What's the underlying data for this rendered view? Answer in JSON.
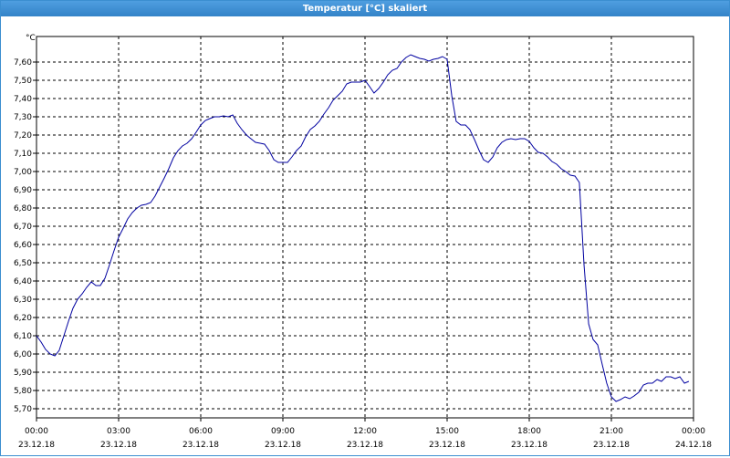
{
  "chart_data": {
    "type": "line",
    "title": "Temperatur [°C] skaliert",
    "ylabel": "°C",
    "xlim": [
      0,
      24
    ],
    "ylim": [
      5.65,
      7.74
    ],
    "grid": true,
    "xticks": [
      {
        "value": 0,
        "label": "00:00",
        "date": "23.12.18"
      },
      {
        "value": 3,
        "label": "03:00",
        "date": "23.12.18"
      },
      {
        "value": 6,
        "label": "06:00",
        "date": "23.12.18"
      },
      {
        "value": 9,
        "label": "09:00",
        "date": "23.12.18"
      },
      {
        "value": 12,
        "label": "12:00",
        "date": "23.12.18"
      },
      {
        "value": 15,
        "label": "15:00",
        "date": "23.12.18"
      },
      {
        "value": 18,
        "label": "18:00",
        "date": "23.12.18"
      },
      {
        "value": 21,
        "label": "21:00",
        "date": "23.12.18"
      },
      {
        "value": 24,
        "label": "00:00",
        "date": "24.12.18"
      }
    ],
    "yticks": [
      {
        "value": 5.7,
        "label": "5,70"
      },
      {
        "value": 5.8,
        "label": "5,80"
      },
      {
        "value": 5.9,
        "label": "5,90"
      },
      {
        "value": 6.0,
        "label": "6,00"
      },
      {
        "value": 6.1,
        "label": "6,10"
      },
      {
        "value": 6.2,
        "label": "6,20"
      },
      {
        "value": 6.3,
        "label": "6,30"
      },
      {
        "value": 6.4,
        "label": "6,40"
      },
      {
        "value": 6.5,
        "label": "6,50"
      },
      {
        "value": 6.6,
        "label": "6,60"
      },
      {
        "value": 6.7,
        "label": "6,70"
      },
      {
        "value": 6.8,
        "label": "6,80"
      },
      {
        "value": 6.9,
        "label": "6,90"
      },
      {
        "value": 7.0,
        "label": "7,00"
      },
      {
        "value": 7.1,
        "label": "7,10"
      },
      {
        "value": 7.2,
        "label": "7,20"
      },
      {
        "value": 7.3,
        "label": "7,30"
      },
      {
        "value": 7.4,
        "label": "7,40"
      },
      {
        "value": 7.5,
        "label": "7,50"
      },
      {
        "value": 7.6,
        "label": "7,60"
      }
    ],
    "x": [
      0,
      0.17,
      0.33,
      0.5,
      0.67,
      0.83,
      1,
      1.17,
      1.33,
      1.5,
      1.67,
      1.83,
      2,
      2.17,
      2.33,
      2.5,
      2.67,
      2.83,
      3,
      3.17,
      3.33,
      3.5,
      3.67,
      3.83,
      4,
      4.17,
      4.33,
      4.5,
      4.67,
      4.83,
      5,
      5.17,
      5.33,
      5.5,
      5.67,
      5.83,
      6,
      6.17,
      6.33,
      6.5,
      6.67,
      6.83,
      7,
      7.17,
      7.33,
      7.5,
      7.67,
      7.83,
      8,
      8.17,
      8.33,
      8.5,
      8.67,
      8.83,
      9,
      9.17,
      9.33,
      9.5,
      9.67,
      9.83,
      10,
      10.17,
      10.33,
      10.5,
      10.67,
      10.83,
      11,
      11.17,
      11.33,
      11.5,
      11.67,
      11.83,
      12,
      12.17,
      12.33,
      12.5,
      12.67,
      12.83,
      13,
      13.17,
      13.33,
      13.5,
      13.67,
      13.83,
      14,
      14.17,
      14.33,
      14.5,
      14.67,
      14.83,
      15,
      15.17,
      15.33,
      15.5,
      15.67,
      15.83,
      16,
      16.17,
      16.33,
      16.5,
      16.67,
      16.83,
      17,
      17.17,
      17.33,
      17.5,
      17.67,
      17.83,
      18,
      18.17,
      18.33,
      18.5,
      18.67,
      18.83,
      19,
      19.17,
      19.33,
      19.5,
      19.67,
      19.83,
      20,
      20.17,
      20.33,
      20.5,
      20.67,
      20.83,
      21,
      21.17,
      21.33,
      21.5,
      21.67,
      21.83,
      22,
      22.17,
      22.33,
      22.5,
      22.67,
      22.83,
      23,
      23.17,
      23.33,
      23.5,
      23.67,
      23.83
    ],
    "series": [
      {
        "color": "#0000a0",
        "values": [
          6.1,
          6.065,
          6.025,
          6.0,
          5.99,
          6.02,
          6.1,
          6.18,
          6.25,
          6.3,
          6.33,
          6.365,
          6.395,
          6.375,
          6.375,
          6.415,
          6.49,
          6.565,
          6.64,
          6.69,
          6.74,
          6.775,
          6.8,
          6.815,
          6.82,
          6.83,
          6.865,
          6.915,
          6.965,
          7.015,
          7.075,
          7.115,
          7.14,
          7.155,
          7.18,
          7.215,
          7.255,
          7.28,
          7.29,
          7.3,
          7.3,
          7.305,
          7.3,
          7.31,
          7.265,
          7.23,
          7.2,
          7.18,
          7.16,
          7.155,
          7.15,
          7.115,
          7.065,
          7.05,
          7.05,
          7.05,
          7.08,
          7.115,
          7.14,
          7.19,
          7.23,
          7.25,
          7.275,
          7.315,
          7.35,
          7.39,
          7.415,
          7.44,
          7.48,
          7.49,
          7.49,
          7.49,
          7.5,
          7.465,
          7.43,
          7.455,
          7.49,
          7.53,
          7.555,
          7.565,
          7.6,
          7.625,
          7.64,
          7.63,
          7.62,
          7.615,
          7.605,
          7.615,
          7.62,
          7.63,
          7.615,
          7.415,
          7.275,
          7.255,
          7.255,
          7.23,
          7.175,
          7.115,
          7.065,
          7.05,
          7.08,
          7.13,
          7.16,
          7.175,
          7.18,
          7.175,
          7.18,
          7.18,
          7.165,
          7.13,
          7.105,
          7.1,
          7.08,
          7.055,
          7.04,
          7.015,
          7.0,
          6.98,
          6.975,
          6.94,
          6.49,
          6.165,
          6.08,
          6.05,
          5.94,
          5.84,
          5.765,
          5.74,
          5.75,
          5.765,
          5.755,
          5.77,
          5.79,
          5.83,
          5.84,
          5.84,
          5.86,
          5.85,
          5.875,
          5.875,
          5.865,
          5.875,
          5.84,
          5.85
        ]
      }
    ]
  }
}
